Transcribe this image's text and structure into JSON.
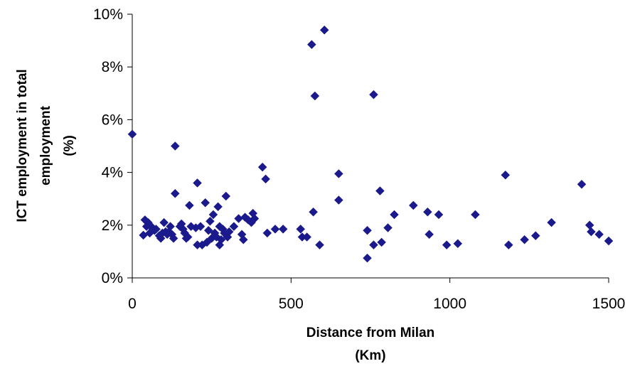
{
  "chart_data": {
    "type": "scatter",
    "title": "",
    "xlabel": [
      "Distance from Milan",
      "(Km)"
    ],
    "ylabel": [
      "ICT employment in total",
      "employment",
      "(%)"
    ],
    "xlim": [
      0,
      1500
    ],
    "ylim": [
      0,
      10
    ],
    "x_ticks": [
      0,
      500,
      1000,
      1500
    ],
    "x_tick_labels": [
      "0",
      "500",
      "1000",
      "1500"
    ],
    "y_ticks": [
      0,
      2,
      4,
      6,
      8,
      10
    ],
    "y_tick_labels": [
      "0%",
      "2%",
      "4%",
      "6%",
      "8%",
      "10%"
    ],
    "grid": false,
    "legend": "none",
    "marker": "diamond",
    "colors": {
      "marker": "#1a1a8c",
      "axis": "#000000"
    },
    "points": [
      [
        0,
        5.45
      ],
      [
        35,
        1.62
      ],
      [
        40,
        2.2
      ],
      [
        45,
        1.95
      ],
      [
        50,
        2.1
      ],
      [
        55,
        1.7
      ],
      [
        60,
        1.95
      ],
      [
        65,
        1.85
      ],
      [
        70,
        1.8
      ],
      [
        75,
        1.85
      ],
      [
        85,
        1.6
      ],
      [
        90,
        1.5
      ],
      [
        95,
        1.7
      ],
      [
        100,
        2.1
      ],
      [
        105,
        1.75
      ],
      [
        110,
        1.65
      ],
      [
        115,
        1.75
      ],
      [
        120,
        1.95
      ],
      [
        125,
        1.65
      ],
      [
        130,
        1.5
      ],
      [
        135,
        3.2
      ],
      [
        135,
        5.0
      ],
      [
        150,
        1.95
      ],
      [
        155,
        2.05
      ],
      [
        160,
        1.85
      ],
      [
        165,
        1.7
      ],
      [
        170,
        1.5
      ],
      [
        175,
        1.55
      ],
      [
        180,
        2.75
      ],
      [
        185,
        1.95
      ],
      [
        200,
        1.9
      ],
      [
        205,
        1.25
      ],
      [
        205,
        3.6
      ],
      [
        215,
        1.95
      ],
      [
        220,
        1.25
      ],
      [
        230,
        2.85
      ],
      [
        235,
        1.35
      ],
      [
        240,
        1.8
      ],
      [
        245,
        2.15
      ],
      [
        250,
        1.5
      ],
      [
        255,
        2.4
      ],
      [
        260,
        1.7
      ],
      [
        265,
        1.55
      ],
      [
        270,
        2.7
      ],
      [
        275,
        1.95
      ],
      [
        275,
        1.25
      ],
      [
        280,
        1.45
      ],
      [
        285,
        1.85
      ],
      [
        290,
        1.7
      ],
      [
        295,
        3.1
      ],
      [
        300,
        1.55
      ],
      [
        305,
        1.75
      ],
      [
        320,
        1.95
      ],
      [
        335,
        2.25
      ],
      [
        345,
        1.65
      ],
      [
        350,
        1.45
      ],
      [
        355,
        2.3
      ],
      [
        365,
        2.2
      ],
      [
        375,
        2.1
      ],
      [
        380,
        2.45
      ],
      [
        385,
        2.25
      ],
      [
        410,
        4.2
      ],
      [
        420,
        3.75
      ],
      [
        425,
        1.7
      ],
      [
        450,
        1.85
      ],
      [
        475,
        1.85
      ],
      [
        530,
        1.85
      ],
      [
        535,
        1.55
      ],
      [
        550,
        1.55
      ],
      [
        565,
        8.85
      ],
      [
        570,
        2.5
      ],
      [
        575,
        6.9
      ],
      [
        590,
        1.25
      ],
      [
        605,
        9.4
      ],
      [
        650,
        3.95
      ],
      [
        650,
        2.95
      ],
      [
        740,
        1.8
      ],
      [
        740,
        0.75
      ],
      [
        760,
        6.95
      ],
      [
        760,
        1.25
      ],
      [
        780,
        3.3
      ],
      [
        785,
        1.35
      ],
      [
        805,
        1.9
      ],
      [
        825,
        2.4
      ],
      [
        885,
        2.75
      ],
      [
        930,
        2.5
      ],
      [
        935,
        1.65
      ],
      [
        965,
        2.4
      ],
      [
        990,
        1.25
      ],
      [
        1025,
        1.3
      ],
      [
        1080,
        2.4
      ],
      [
        1175,
        3.9
      ],
      [
        1185,
        1.25
      ],
      [
        1235,
        1.45
      ],
      [
        1270,
        1.6
      ],
      [
        1320,
        2.1
      ],
      [
        1415,
        3.55
      ],
      [
        1440,
        2.0
      ],
      [
        1445,
        1.75
      ],
      [
        1470,
        1.65
      ],
      [
        1500,
        1.4
      ]
    ]
  }
}
